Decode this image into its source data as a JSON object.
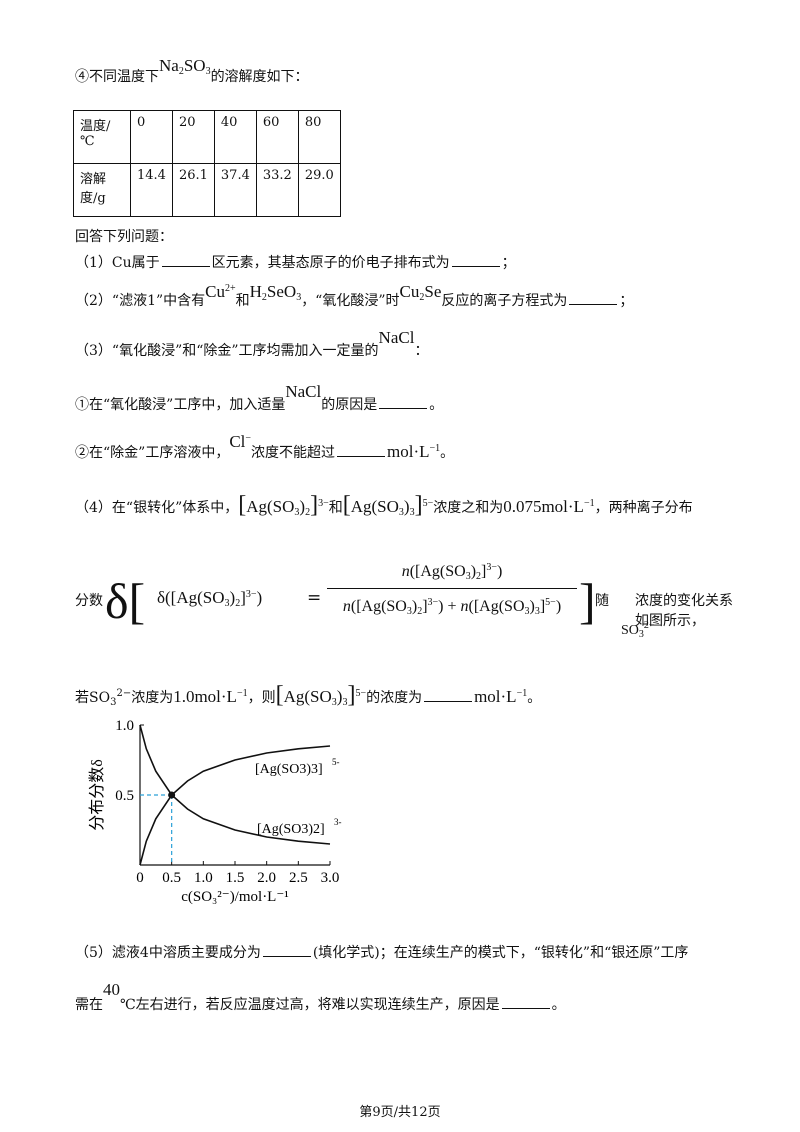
{
  "intro_4": {
    "prefix": "④不同温度下",
    "compound": "Na",
    "compound_sub1": "2",
    "compound_mid": "SO",
    "compound_sub2": "3",
    "suffix": "的溶解度如下："
  },
  "table": {
    "row1_header": "温度/℃",
    "temperatures": [
      "0",
      "20",
      "40",
      "60",
      "80"
    ],
    "row2_header": "溶解度/g",
    "solubility": [
      "14.4",
      "26.1",
      "37.4",
      "33.2",
      "29.0"
    ]
  },
  "answer_prompt": "回答下列问题：",
  "q1": {
    "text_a": "（1）Cu属于",
    "text_b": "区元素，其基态原子的价电子排布式为",
    "text_c": "；"
  },
  "q2": {
    "text_a": "（2）“滤液1”中含有",
    "cu": "Cu",
    "cu_sup": "2+",
    "text_b": "和",
    "h2seo3": "H",
    "h2seo3_sub": "2",
    "h2seo3_rest": "SeO",
    "h2seo3_sub2": "3",
    "text_c": "，“氧化酸浸”时",
    "cu2se": "Cu",
    "cu2se_sub": "2",
    "cu2se_rest": "Se",
    "text_d": "反应的离子方程式为",
    "text_e": "；"
  },
  "q3": {
    "text_a": "（3）“氧化酸浸”和“除金”工序均需加入一定量的",
    "nacl": "NaCl",
    "text_b": "："
  },
  "q3_1": {
    "text_a": "①在“氧化酸浸”工序中，加入适量",
    "nacl": "NaCl",
    "text_b": "的原因是",
    "text_c": "。"
  },
  "q3_2": {
    "text_a": "②在“除金”工序溶液中，",
    "cl": "Cl",
    "cl_sup": "−",
    "text_b": "浓度不能超过",
    "unit": "mol·L",
    "unit_sup": "−1",
    "text_c": "。"
  },
  "q4": {
    "text_a": "（4）在“银转化”体系中，",
    "ion1": "Ag(SO",
    "ion1_sub": "3",
    "ion1_sub2": "2",
    "ion1_sup": "3−",
    "and": "和",
    "ion2": "Ag(SO",
    "ion2_sub": "3",
    "ion2_sub2": "3",
    "ion2_sup": "5−",
    "text_b": "浓度之和为",
    "conc": "0.075mol·L",
    "conc_sup": "−1",
    "text_c": "，两种离子分布"
  },
  "q4_formula": {
    "prefix": "分数",
    "delta": "δ",
    "num_n": "n",
    "plus": "+",
    "suffix_a": "随",
    "so3": "SO",
    "so3_sub": "3",
    "so3_sup": "2−",
    "suffix_b": "浓度的变化关系如图所示，",
    "eq": "="
  },
  "q4_last": {
    "text_a": "若SO",
    "so3_sub": "3",
    "so3_sup": "2−",
    "text_b": "浓度为",
    "conc": "1.0mol·L",
    "conc_sup": "−1",
    "text_c": "，则",
    "ion": "Ag(SO",
    "ion_sub": "3",
    "ion_sub2": "3",
    "ion_sup": "5−",
    "text_d": "的浓度为",
    "unit": "mol·L",
    "unit_sup": "−1",
    "text_e": "。"
  },
  "chart_data": {
    "type": "line",
    "ylabel": "分布分数δ",
    "xlabel": "c(SO₃²⁻)/mol·L⁻¹",
    "xlim": [
      0,
      3.0
    ],
    "ylim": [
      0,
      1.0
    ],
    "x_ticks": [
      "0",
      "0.5",
      "1.0",
      "1.5",
      "2.0",
      "2.5",
      "3.0"
    ],
    "y_ticks": [
      "0.5",
      "1.0"
    ],
    "series": [
      {
        "name": "[Ag(SO3)3]5-",
        "x": [
          0,
          0.1,
          0.25,
          0.5,
          0.75,
          1.0,
          1.5,
          2.0,
          2.5,
          3.0
        ],
        "values": [
          0,
          0.17,
          0.33,
          0.5,
          0.6,
          0.67,
          0.75,
          0.8,
          0.83,
          0.85
        ]
      },
      {
        "name": "[Ag(SO3)2]3-",
        "x": [
          0,
          0.1,
          0.25,
          0.5,
          0.75,
          1.0,
          1.5,
          2.0,
          2.5,
          3.0
        ],
        "values": [
          1.0,
          0.83,
          0.67,
          0.5,
          0.4,
          0.33,
          0.25,
          0.2,
          0.17,
          0.15
        ]
      }
    ],
    "intersection": {
      "x": 0.5,
      "y": 0.5
    },
    "legend_labels": {
      "upper": "[Ag(SO3)3]",
      "upper_sup": "5-",
      "lower": "[Ag(SO3)2]",
      "lower_sup": "3-"
    }
  },
  "q5": {
    "text_a": "（5）滤液4中溶质主要成分为",
    "text_b": "(填化学式)；在连续生产的模式下，“银转化”和“银还原”工序"
  },
  "q5_b": {
    "text_a": "需在",
    "temp": "40",
    "text_b": "℃左右进行，若反应温度过高，将难以实现连续生产，原因是",
    "text_c": "。"
  },
  "footer": "第9页/共12页"
}
